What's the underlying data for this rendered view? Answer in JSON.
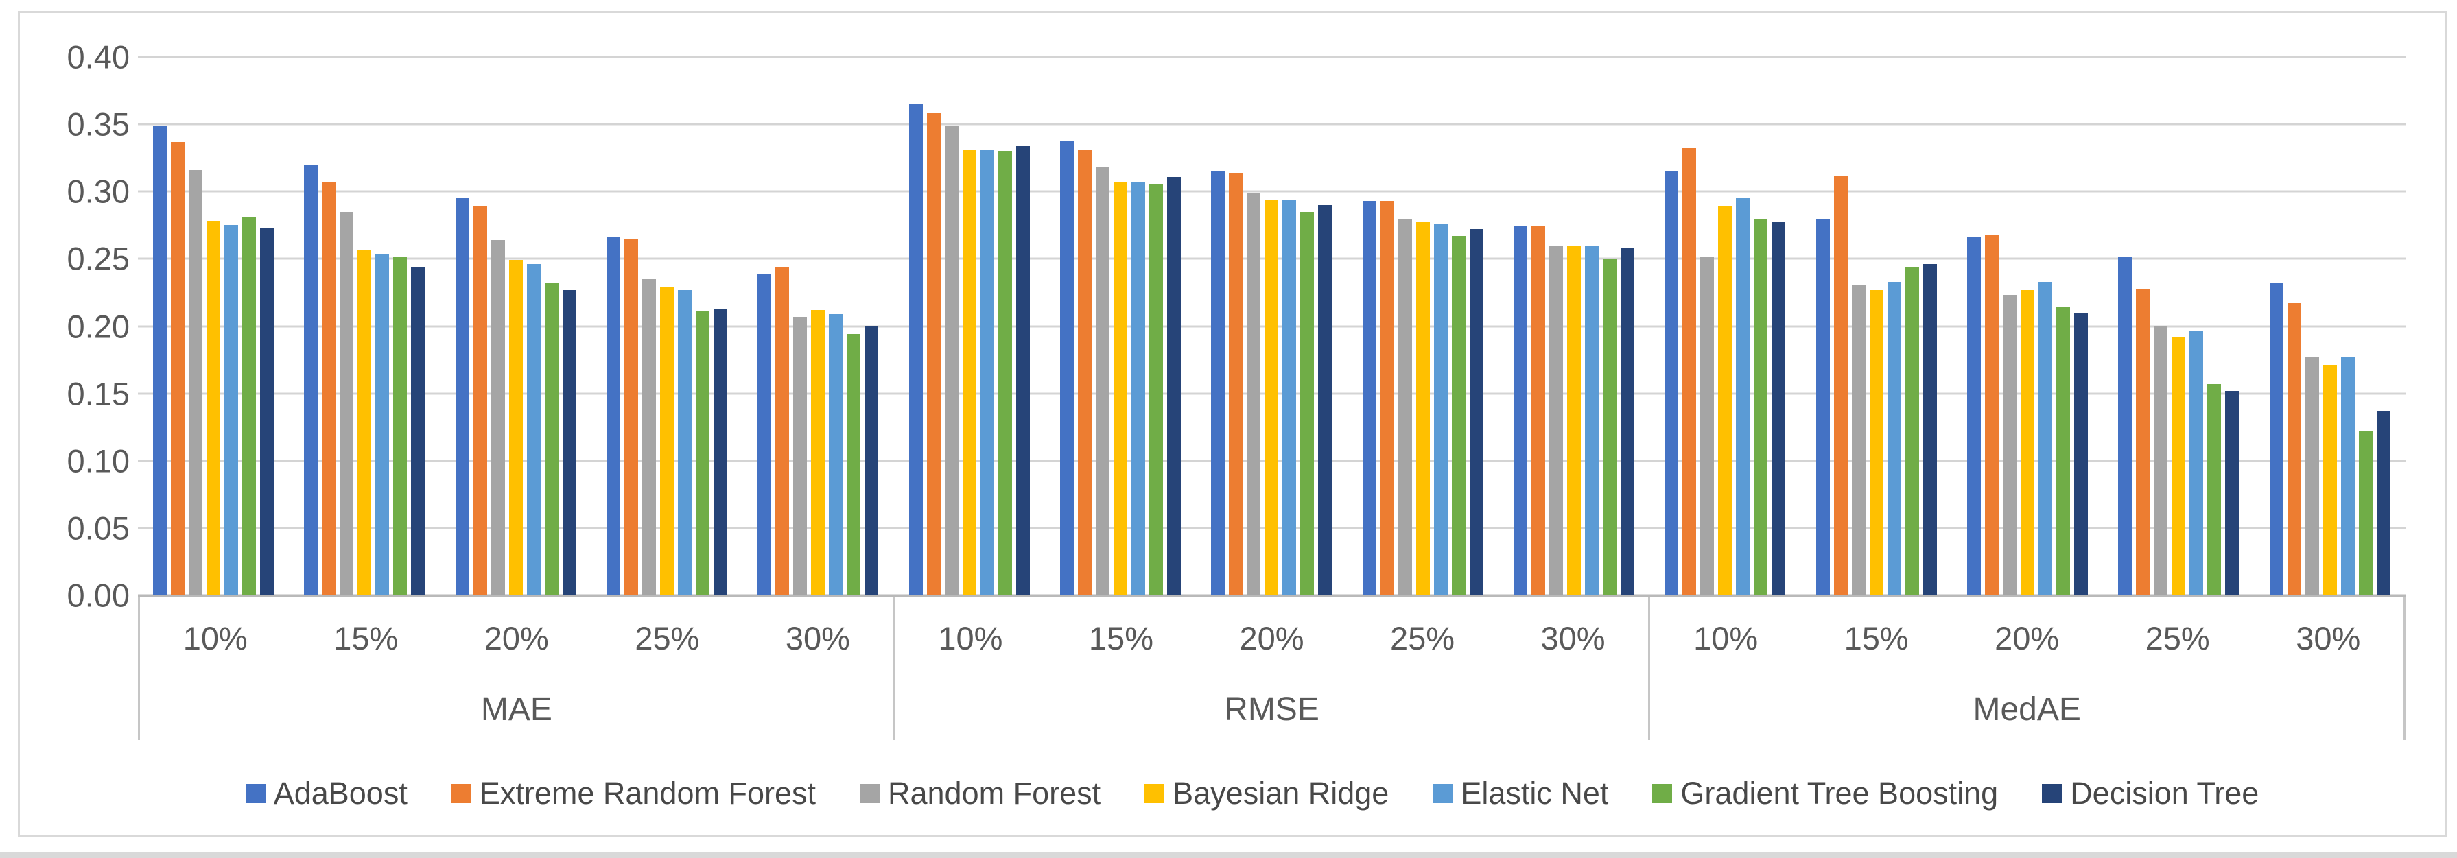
{
  "figure": {
    "background": "#ffffff",
    "frame_border_color": "#d9d9d9",
    "bottom_strip_color": "#d9d9d9",
    "axis_text_color": "#595959",
    "legend_text_color": "#484848",
    "gridline_color": "#d4d4d4",
    "axis_line_color": "#b9b9b9",
    "separator_color": "#c6c6c6"
  },
  "chart_data": {
    "type": "bar",
    "title": "",
    "xlabel": "",
    "ylabel": "",
    "ylim": [
      0,
      0.4
    ],
    "ytick_step": 0.05,
    "y_tick_labels": [
      "0.40",
      "0.35",
      "0.30",
      "0.25",
      "0.20",
      "0.15",
      "0.10",
      "0.05",
      "0.00"
    ],
    "grid": true,
    "legend_position": "bottom",
    "group_labels": [
      "MAE",
      "RMSE",
      "MedAE"
    ],
    "categories": [
      "10%",
      "15%",
      "20%",
      "25%",
      "30%"
    ],
    "series": [
      {
        "name": "AdaBoost",
        "color": "#4472C4",
        "values": {
          "MAE": [
            0.349,
            0.32,
            0.295,
            0.266,
            0.239
          ],
          "RMSE": [
            0.365,
            0.338,
            0.315,
            0.293,
            0.274
          ],
          "MedAE": [
            0.315,
            0.28,
            0.266,
            0.251,
            0.232
          ]
        }
      },
      {
        "name": "Extreme Random Forest",
        "color": "#ED7D31",
        "values": {
          "MAE": [
            0.337,
            0.307,
            0.289,
            0.265,
            0.244
          ],
          "RMSE": [
            0.358,
            0.331,
            0.314,
            0.293,
            0.274
          ],
          "MedAE": [
            0.332,
            0.312,
            0.268,
            0.228,
            0.217
          ]
        }
      },
      {
        "name": "Random Forest",
        "color": "#A5A5A5",
        "values": {
          "MAE": [
            0.316,
            0.285,
            0.264,
            0.235,
            0.207
          ],
          "RMSE": [
            0.349,
            0.318,
            0.299,
            0.28,
            0.26
          ],
          "MedAE": [
            0.251,
            0.231,
            0.223,
            0.2,
            0.177
          ]
        }
      },
      {
        "name": "Bayesian Ridge",
        "color": "#FFC000",
        "values": {
          "MAE": [
            0.278,
            0.257,
            0.249,
            0.229,
            0.212
          ],
          "RMSE": [
            0.331,
            0.307,
            0.294,
            0.277,
            0.26
          ],
          "MedAE": [
            0.289,
            0.227,
            0.227,
            0.192,
            0.171
          ]
        }
      },
      {
        "name": "Elastic Net",
        "color": "#5B9BD5",
        "values": {
          "MAE": [
            0.275,
            0.254,
            0.246,
            0.227,
            0.209
          ],
          "RMSE": [
            0.331,
            0.307,
            0.294,
            0.276,
            0.26
          ],
          "MedAE": [
            0.295,
            0.233,
            0.233,
            0.196,
            0.177
          ]
        }
      },
      {
        "name": "Gradient Tree Boosting",
        "color": "#70AD47",
        "values": {
          "MAE": [
            0.281,
            0.251,
            0.232,
            0.211,
            0.194
          ],
          "RMSE": [
            0.33,
            0.305,
            0.285,
            0.267,
            0.25
          ],
          "MedAE": [
            0.279,
            0.244,
            0.214,
            0.157,
            0.122
          ]
        }
      },
      {
        "name": "Decision Tree",
        "color": "#264478",
        "values": {
          "MAE": [
            0.273,
            0.244,
            0.227,
            0.213,
            0.2
          ],
          "RMSE": [
            0.334,
            0.311,
            0.29,
            0.272,
            0.258
          ],
          "MedAE": [
            0.277,
            0.246,
            0.21,
            0.152,
            0.137
          ]
        }
      }
    ]
  }
}
